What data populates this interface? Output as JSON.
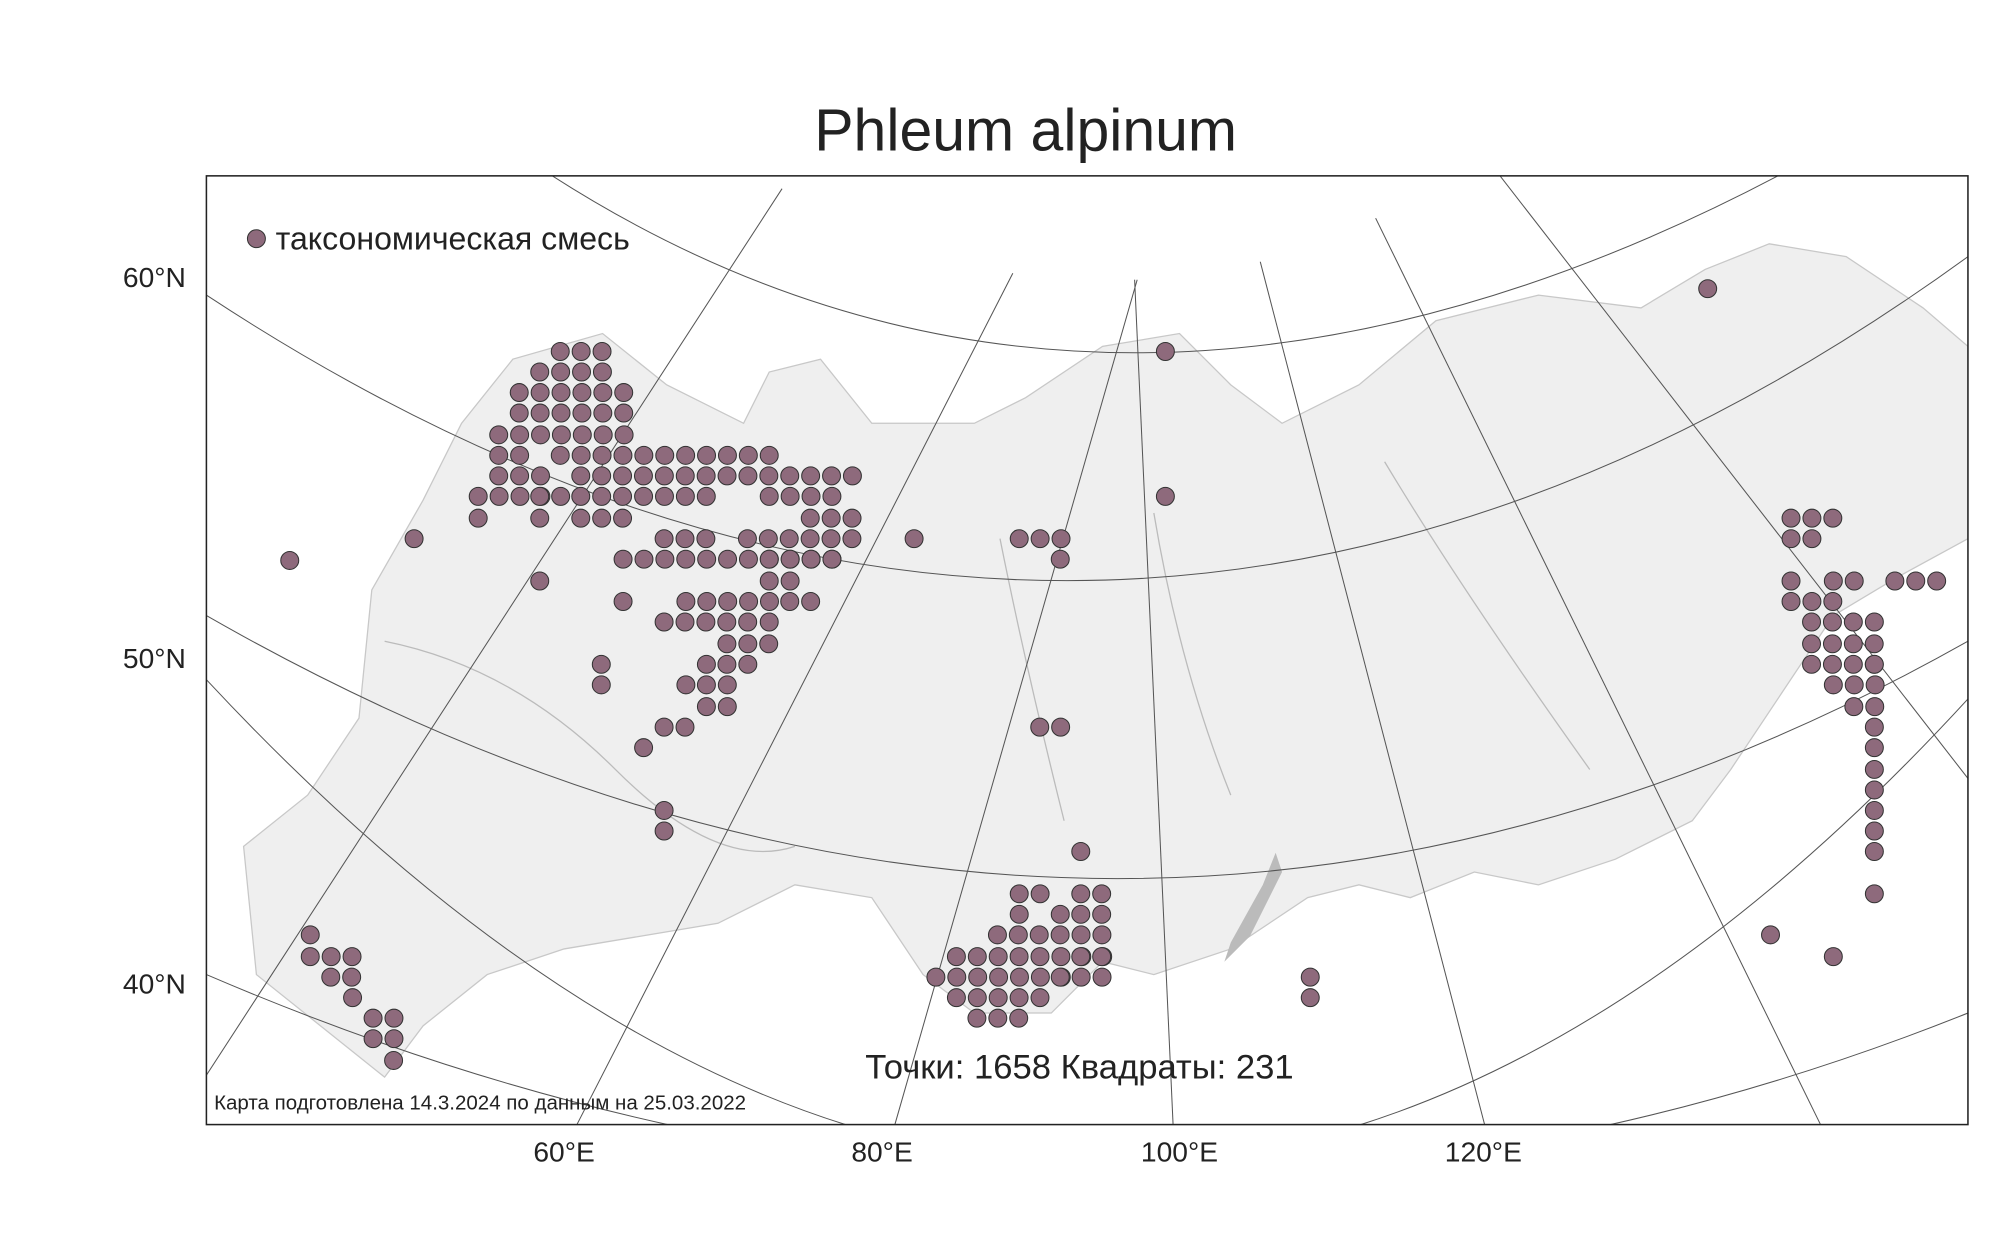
{
  "title": "Phleum alpinum",
  "legend": {
    "label": "таксономическая смесь"
  },
  "lat_labels": [
    "60°N",
    "50°N",
    "40°N"
  ],
  "lon_labels": [
    "60°E",
    "80°E",
    "100°E",
    "120°E"
  ],
  "stats": {
    "points_label": "Точки:",
    "points": 1658,
    "squares_label": "Квадраты:",
    "squares": 231
  },
  "footer": "Карта подготовлена 14.3.2024 по данным на 25.03.2022"
}
